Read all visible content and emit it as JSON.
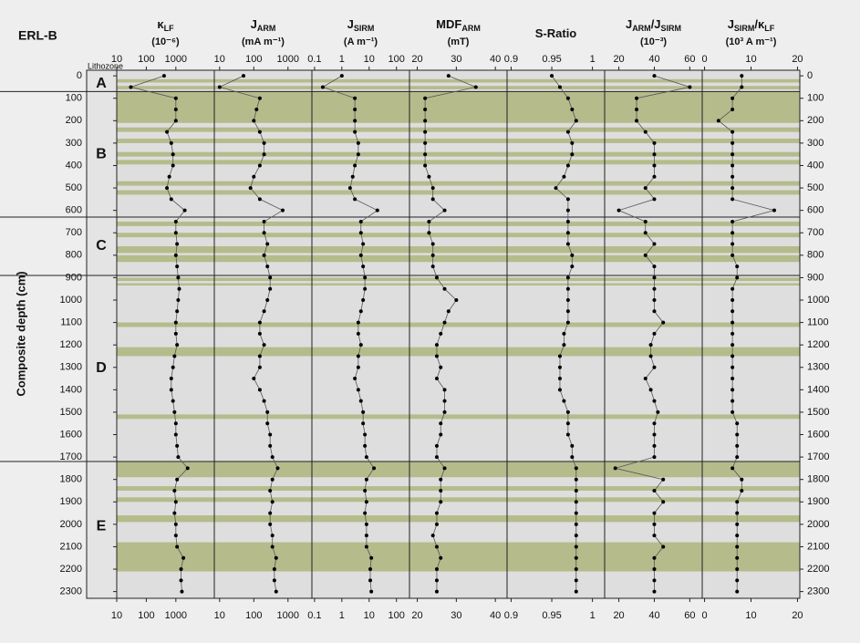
{
  "header": {
    "title": "ERL-B",
    "lithozone_label": "Lithozone"
  },
  "depth_axis": {
    "label": "Composite depth (cm)",
    "ylim": [
      -25,
      2330
    ],
    "yticks": [
      0,
      100,
      200,
      300,
      400,
      500,
      600,
      700,
      800,
      900,
      1000,
      1100,
      1200,
      1300,
      1400,
      1500,
      1600,
      1700,
      1800,
      1900,
      2000,
      2100,
      2200,
      2300
    ]
  },
  "depths": [
    0,
    50,
    100,
    150,
    200,
    250,
    300,
    350,
    400,
    450,
    500,
    550,
    600,
    650,
    700,
    750,
    800,
    850,
    900,
    950,
    1000,
    1050,
    1100,
    1150,
    1200,
    1250,
    1300,
    1350,
    1400,
    1450,
    1500,
    1550,
    1600,
    1650,
    1700,
    1750,
    1800,
    1850,
    1900,
    1950,
    2000,
    2050,
    2100,
    2150,
    2200,
    2250,
    2300
  ],
  "lithozones": [
    {
      "label": "A",
      "top": 0,
      "bottom": 70
    },
    {
      "label": "B",
      "top": 70,
      "bottom": 630
    },
    {
      "label": "C",
      "top": 630,
      "bottom": 890
    },
    {
      "label": "D",
      "top": 890,
      "bottom": 1720
    },
    {
      "label": "E",
      "top": 1720,
      "bottom": 2300
    }
  ],
  "band_color": "#b6bb8c",
  "bands": [
    [
      15,
      30
    ],
    [
      45,
      60
    ],
    [
      70,
      210
    ],
    [
      230,
      250
    ],
    [
      280,
      300
    ],
    [
      340,
      360
    ],
    [
      375,
      395
    ],
    [
      470,
      490
    ],
    [
      510,
      530
    ],
    [
      650,
      670
    ],
    [
      700,
      720
    ],
    [
      760,
      790
    ],
    [
      800,
      830
    ],
    [
      900,
      915
    ],
    [
      925,
      935
    ],
    [
      1100,
      1120
    ],
    [
      1210,
      1250
    ],
    [
      1510,
      1530
    ],
    [
      1720,
      1790
    ],
    [
      1830,
      1850
    ],
    [
      1880,
      1900
    ],
    [
      1960,
      1990
    ],
    [
      2080,
      2210
    ]
  ],
  "chart_data": [
    {
      "type": "line",
      "title": [
        {
          "text": "κ"
        },
        {
          "text": "LF",
          "sub": true
        }
      ],
      "unit": "(10⁻⁶)",
      "log": true,
      "xlim": [
        10,
        20000
      ],
      "xticks": [
        10,
        100,
        1000
      ],
      "color": "#000000",
      "values": [
        400,
        30,
        1000,
        1000,
        1000,
        500,
        700,
        800,
        800,
        600,
        500,
        700,
        2000,
        1000,
        1000,
        1100,
        1000,
        1100,
        1200,
        1300,
        1200,
        1100,
        1000,
        1000,
        1100,
        900,
        800,
        700,
        700,
        800,
        900,
        1000,
        1000,
        1100,
        1200,
        2500,
        1100,
        900,
        1000,
        900,
        1000,
        1000,
        1100,
        1800,
        1500,
        1500,
        1600
      ]
    },
    {
      "type": "line",
      "title": [
        {
          "text": "J"
        },
        {
          "text": "ARM",
          "sub": true
        }
      ],
      "unit": "(mA m⁻¹)",
      "log": true,
      "xlim": [
        7,
        5000
      ],
      "xticks": [
        10,
        100,
        1000
      ],
      "color": "#000000",
      "values": [
        50,
        10,
        150,
        120,
        100,
        150,
        200,
        200,
        150,
        100,
        80,
        150,
        700,
        200,
        200,
        250,
        200,
        250,
        300,
        300,
        250,
        200,
        150,
        150,
        200,
        150,
        150,
        100,
        150,
        200,
        250,
        250,
        300,
        300,
        350,
        500,
        350,
        300,
        350,
        300,
        300,
        350,
        350,
        450,
        400,
        400,
        450
      ]
    },
    {
      "type": "line",
      "title": [
        {
          "text": "J"
        },
        {
          "text": "SIRM",
          "sub": true
        }
      ],
      "unit": "(A m⁻¹)",
      "log": true,
      "xlim": [
        0.08,
        300
      ],
      "xticks": [
        0.1,
        1,
        10,
        100
      ],
      "color": "#000000",
      "values": [
        1,
        0.2,
        3,
        3,
        3,
        3,
        4,
        4,
        3,
        2.5,
        2,
        3,
        20,
        5,
        5,
        6,
        5,
        6,
        7,
        7,
        6,
        5,
        4,
        4,
        5,
        4,
        4,
        3,
        4,
        5,
        6,
        6,
        7,
        7,
        8,
        15,
        8,
        7,
        8,
        7,
        8,
        8,
        8,
        12,
        11,
        11,
        12
      ]
    },
    {
      "type": "line",
      "title": [
        {
          "text": "MDF"
        },
        {
          "text": "ARM",
          "sub": true
        }
      ],
      "unit": "(mT)",
      "log": false,
      "xlim": [
        18,
        43
      ],
      "xticks": [
        20,
        30,
        40
      ],
      "color": "#000000",
      "values": [
        28,
        35,
        22,
        22,
        22,
        22,
        22,
        22,
        22,
        23,
        24,
        24,
        27,
        23,
        23,
        24,
        24,
        24,
        25,
        27,
        30,
        28,
        27,
        26,
        25,
        25,
        26,
        25,
        27,
        27,
        27,
        26,
        26,
        25,
        25,
        27,
        26,
        26,
        26,
        25,
        25,
        24,
        25,
        26,
        25,
        25,
        25
      ]
    },
    {
      "type": "line",
      "title": [
        {
          "text": "S-Ratio"
        }
      ],
      "log": false,
      "xlim": [
        0.895,
        1.015
      ],
      "xticks": [
        0.9,
        0.95,
        1
      ],
      "color": "#000000",
      "values": [
        0.95,
        0.96,
        0.97,
        0.975,
        0.98,
        0.97,
        0.975,
        0.975,
        0.97,
        0.965,
        0.955,
        0.97,
        0.97,
        0.97,
        0.97,
        0.97,
        0.975,
        0.975,
        0.97,
        0.97,
        0.97,
        0.97,
        0.97,
        0.965,
        0.965,
        0.96,
        0.96,
        0.96,
        0.96,
        0.965,
        0.97,
        0.97,
        0.97,
        0.975,
        0.975,
        0.98,
        0.98,
        0.98,
        0.98,
        0.98,
        0.98,
        0.98,
        0.98,
        0.98,
        0.98,
        0.98,
        0.98
      ]
    },
    {
      "type": "line",
      "title": [
        {
          "text": "J"
        },
        {
          "text": "ARM",
          "sub": true
        },
        {
          "text": "/J"
        },
        {
          "text": "SIRM",
          "sub": true
        }
      ],
      "unit": "(10⁻³)",
      "log": false,
      "xlim": [
        12,
        67
      ],
      "xticks": [
        20,
        40,
        60
      ],
      "color": "#000000",
      "values": [
        40,
        60,
        30,
        30,
        30,
        35,
        40,
        40,
        40,
        40,
        35,
        40,
        20,
        35,
        35,
        40,
        35,
        40,
        40,
        40,
        40,
        40,
        45,
        40,
        38,
        38,
        40,
        35,
        38,
        40,
        42,
        40,
        40,
        40,
        40,
        18,
        45,
        40,
        45,
        40,
        40,
        40,
        45,
        40,
        40,
        40,
        40
      ]
    },
    {
      "type": "line",
      "title": [
        {
          "text": "J"
        },
        {
          "text": "SIRM",
          "sub": true
        },
        {
          "text": "/κ"
        },
        {
          "text": "LF",
          "sub": true
        }
      ],
      "unit": "(10³ A m⁻¹)",
      "log": false,
      "xlim": [
        -0.5,
        20.5
      ],
      "xticks": [
        0,
        10,
        20
      ],
      "color": "#000000",
      "values": [
        8,
        8,
        6,
        6,
        3,
        6,
        6,
        6,
        6,
        6,
        6,
        6,
        15,
        6,
        6,
        6,
        6,
        7,
        7,
        6,
        6,
        6,
        6,
        6,
        6,
        6,
        6,
        6,
        6,
        6,
        6,
        7,
        7,
        7,
        7,
        6,
        8,
        8,
        7,
        7,
        7,
        7,
        7,
        7,
        7,
        7,
        7
      ]
    }
  ]
}
